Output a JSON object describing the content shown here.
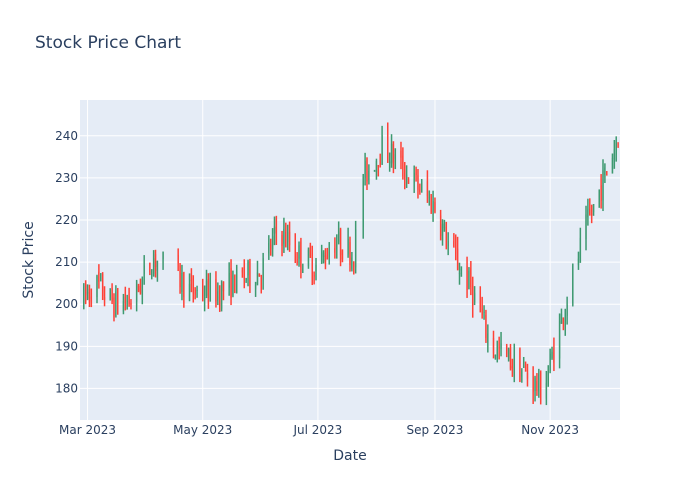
{
  "chart_data": {
    "type": "candlestick",
    "title": "Stock Price Chart",
    "xlabel": "Date",
    "ylabel": "Stock Price",
    "x_tick_labels": [
      "Mar 2023",
      "May 2023",
      "Jul 2023",
      "Sep 2023",
      "Nov 2023"
    ],
    "x_tick_dates": [
      "2023-03-01",
      "2023-05-01",
      "2023-07-01",
      "2023-09-01",
      "2023-11-01"
    ],
    "y_ticks": [
      180,
      190,
      200,
      210,
      220,
      230,
      240
    ],
    "xlim": [
      "2023-02-25",
      "2023-12-08"
    ],
    "ylim": [
      172.5,
      248.5
    ],
    "grid": true,
    "colors": {
      "increasing": "#3D9970",
      "decreasing": "#FF4136",
      "plot_bg": "#E5ECF6",
      "grid": "#ffffff",
      "text": "#2a3f5f"
    },
    "trend_points": [
      {
        "date": "2023-02-25",
        "close": 200
      },
      {
        "date": "2023-03-05",
        "close": 205
      },
      {
        "date": "2023-03-15",
        "close": 200
      },
      {
        "date": "2023-03-25",
        "close": 201
      },
      {
        "date": "2023-04-05",
        "close": 211
      },
      {
        "date": "2023-04-15",
        "close": 208
      },
      {
        "date": "2023-04-25",
        "close": 203
      },
      {
        "date": "2023-05-10",
        "close": 203
      },
      {
        "date": "2023-05-20",
        "close": 206
      },
      {
        "date": "2023-06-01",
        "close": 208
      },
      {
        "date": "2023-06-10",
        "close": 218
      },
      {
        "date": "2023-06-20",
        "close": 212
      },
      {
        "date": "2023-06-30",
        "close": 209
      },
      {
        "date": "2023-07-10",
        "close": 215
      },
      {
        "date": "2023-07-20",
        "close": 212
      },
      {
        "date": "2023-07-25",
        "close": 230
      },
      {
        "date": "2023-08-05",
        "close": 238
      },
      {
        "date": "2023-08-15",
        "close": 232
      },
      {
        "date": "2023-08-25",
        "close": 227
      },
      {
        "date": "2023-09-01",
        "close": 223
      },
      {
        "date": "2023-09-10",
        "close": 212
      },
      {
        "date": "2023-09-20",
        "close": 204
      },
      {
        "date": "2023-10-01",
        "close": 190
      },
      {
        "date": "2023-10-10",
        "close": 187
      },
      {
        "date": "2023-10-20",
        "close": 183
      },
      {
        "date": "2023-10-28",
        "close": 179
      },
      {
        "date": "2023-11-05",
        "close": 193
      },
      {
        "date": "2023-11-12",
        "close": 205
      },
      {
        "date": "2023-11-20",
        "close": 218
      },
      {
        "date": "2023-11-28",
        "close": 228
      },
      {
        "date": "2023-12-07",
        "close": 240
      }
    ],
    "data_gaps": [
      {
        "start": "2023-04-11",
        "end": "2023-04-17"
      },
      {
        "start": "2023-07-23",
        "end": "2023-07-24"
      },
      {
        "start": "2023-11-14",
        "end": "2023-11-15"
      }
    ]
  }
}
